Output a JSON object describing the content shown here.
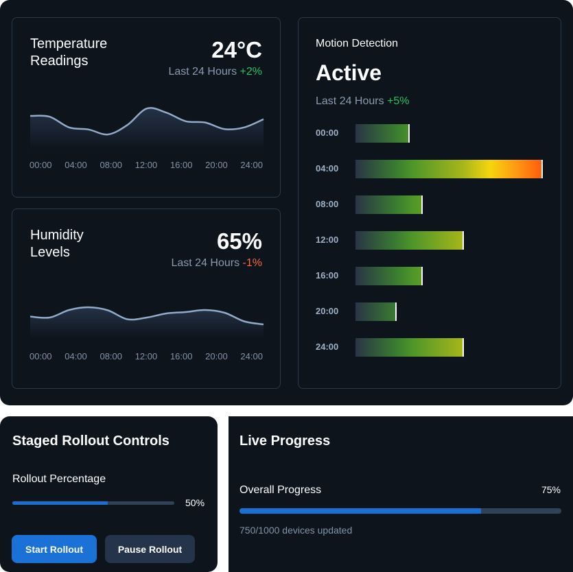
{
  "temperature": {
    "title_line1": "Temperature",
    "title_line2": "Readings",
    "value": "24°C",
    "period": "Last 24 Hours",
    "change": "+2%",
    "ticks": [
      "00:00",
      "04:00",
      "08:00",
      "12:00",
      "16:00",
      "20:00",
      "24:00"
    ],
    "series": [
      70,
      68,
      42,
      37,
      25,
      48,
      88,
      78,
      57,
      54,
      38,
      42,
      62
    ]
  },
  "humidity": {
    "title_line1": "Humidity",
    "title_line2": "Levels",
    "value": "65%",
    "period": "Last 24 Hours",
    "change": "-1%",
    "ticks": [
      "00:00",
      "04:00",
      "08:00",
      "12:00",
      "16:00",
      "20:00",
      "24:00"
    ],
    "series": [
      47,
      44,
      66,
      74,
      65,
      39,
      44,
      56,
      60,
      66,
      58,
      33,
      24
    ]
  },
  "motion": {
    "title": "Motion Detection",
    "status": "Active",
    "period": "Last 24 Hours",
    "change": "+5%",
    "bars": [
      {
        "label": "00:00",
        "value": 29
      },
      {
        "label": "04:00",
        "value": 100
      },
      {
        "label": "08:00",
        "value": 36
      },
      {
        "label": "12:00",
        "value": 58
      },
      {
        "label": "16:00",
        "value": 36
      },
      {
        "label": "20:00",
        "value": 22
      },
      {
        "label": "24:00",
        "value": 58
      }
    ]
  },
  "rollout": {
    "title": "Staged Rollout Controls",
    "label": "Rollout Percentage",
    "percent": 50,
    "percent_text": "50%",
    "start_label": "Start Rollout",
    "pause_label": "Pause Rollout"
  },
  "progress": {
    "title": "Live Progress",
    "label": "Overall Progress",
    "percent": 75,
    "percent_text": "75%",
    "detail": "750/1000 devices updated"
  },
  "colors": {
    "accent": "#1a6fd1",
    "positive": "#22c55e",
    "negative": "#ff6a3d"
  }
}
